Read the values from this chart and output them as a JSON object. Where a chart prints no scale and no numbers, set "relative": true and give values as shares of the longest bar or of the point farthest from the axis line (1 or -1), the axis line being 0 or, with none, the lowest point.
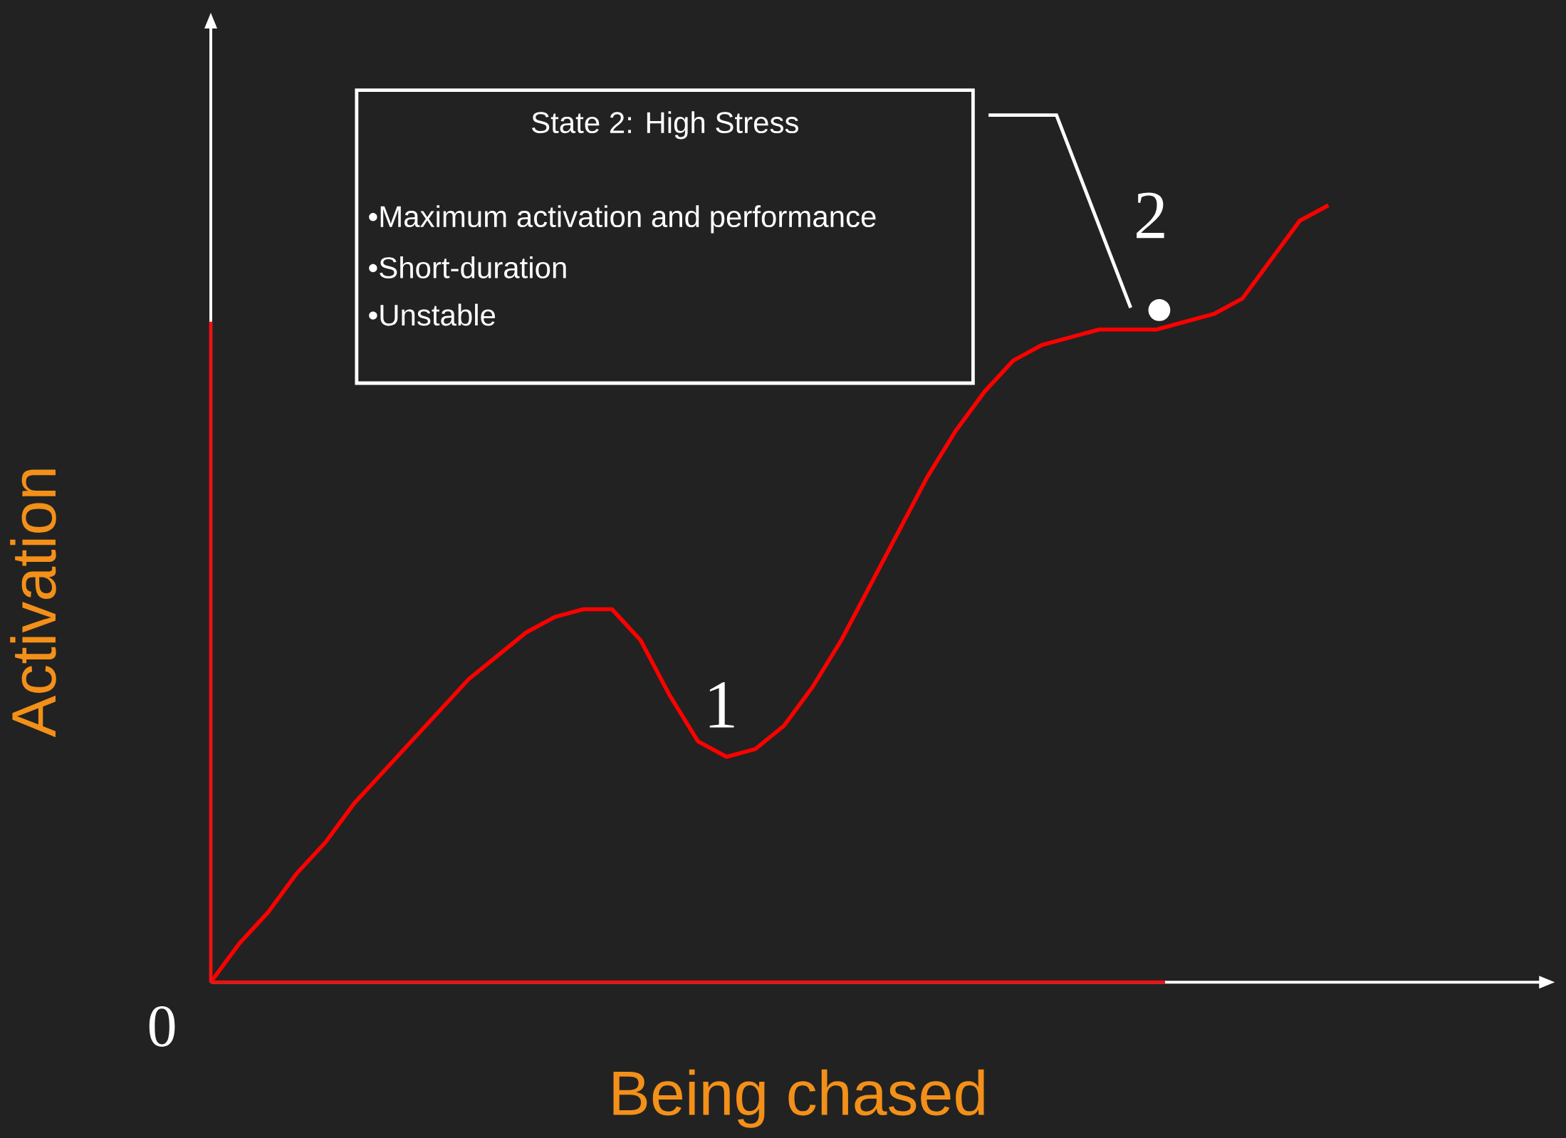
{
  "chart_data": {
    "type": "line",
    "relative": true,
    "xlabel": "Being chased",
    "ylabel": "Activation",
    "categories": [
      null,
      null,
      null,
      null,
      null,
      null,
      null,
      null,
      null,
      null,
      null,
      null,
      null,
      null,
      null,
      null,
      null,
      null,
      null,
      null,
      null,
      null,
      null,
      null,
      null,
      null,
      null,
      null,
      null,
      null,
      null,
      null,
      null,
      null,
      null,
      null,
      null,
      null,
      null,
      null
    ],
    "series": [
      {
        "color": "#ff0000",
        "values": [
          0,
          0.05,
          0.09,
          0.14,
          0.18,
          0.23,
          0.27,
          0.31,
          0.35,
          0.39,
          0.42,
          0.45,
          0.47,
          0.48,
          0.48,
          0.44,
          0.37,
          0.31,
          0.29,
          0.3,
          0.33,
          0.38,
          0.44,
          0.51,
          0.58,
          0.65,
          0.71,
          0.76,
          0.8,
          0.82,
          0.83,
          0.84,
          0.84,
          0.84,
          0.85,
          0.86,
          0.88,
          0.93,
          0.98,
          1
        ]
      }
    ],
    "annotations": [
      "State 2: High Stress",
      "•Maximum activation and performance",
      "•Short-duration",
      "•Unstable",
      "1",
      "2",
      "0"
    ]
  }
}
